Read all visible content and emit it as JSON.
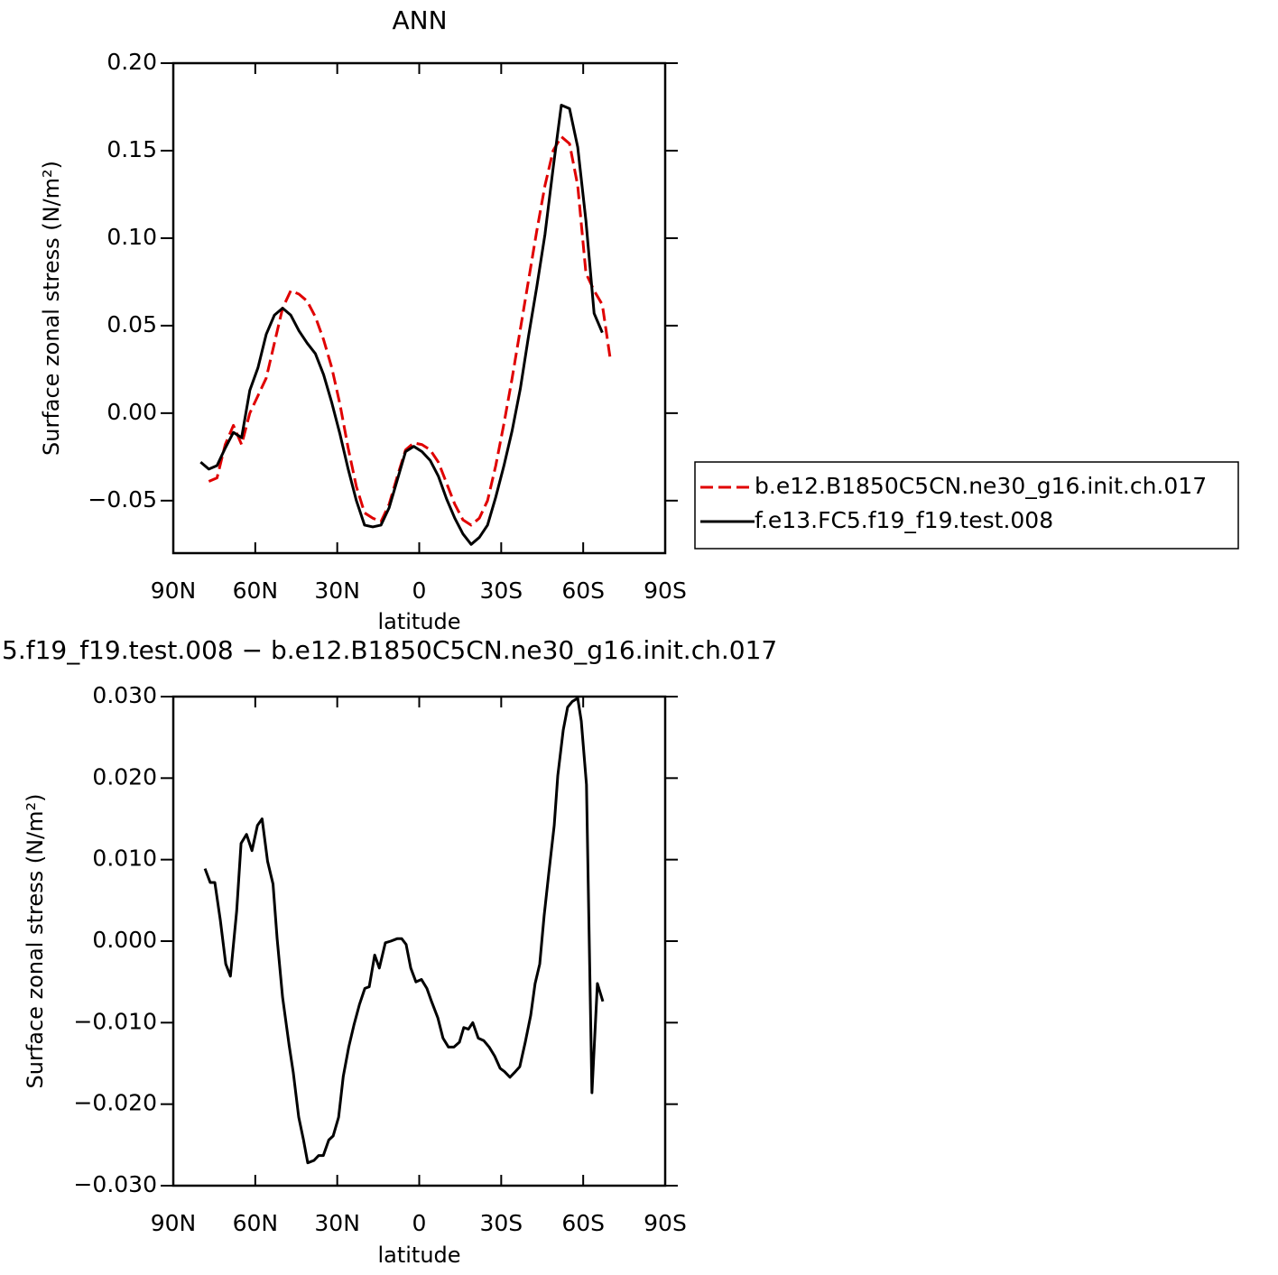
{
  "chart_data": [
    {
      "type": "line",
      "title": "ANN",
      "xlabel": "latitude",
      "ylabel": "Surface zonal stress (N/m²)",
      "x": [
        80,
        77,
        74,
        71,
        68,
        65,
        62,
        59,
        56,
        53,
        50,
        47,
        44,
        41,
        38,
        35,
        32,
        29,
        26,
        23,
        20,
        17,
        14,
        11,
        8,
        5,
        2,
        -1,
        -4,
        -7,
        -10,
        -13,
        -16,
        -19,
        -22,
        -25,
        -28,
        -31,
        -34,
        -37,
        -40,
        -43,
        -46,
        -49,
        -52,
        -55,
        -58,
        -61,
        -64,
        -67,
        -70
      ],
      "xlim": [
        90,
        -90
      ],
      "xticks": [
        {
          "value": 90,
          "label": "90N"
        },
        {
          "value": 60,
          "label": "60N"
        },
        {
          "value": 30,
          "label": "30N"
        },
        0,
        {
          "value": -30,
          "label": "30S"
        },
        {
          "value": -60,
          "label": "60S"
        },
        {
          "value": -90,
          "label": "90S"
        }
      ],
      "ylim": [
        -0.08,
        0.2
      ],
      "yticks": [
        {
          "value": -0.05,
          "label": "−0.05"
        },
        {
          "value": 0,
          "label": "0.00"
        },
        0.05,
        {
          "value": 0.1,
          "label": "0.10"
        },
        0.15,
        {
          "value": 0.2,
          "label": "0.20"
        }
      ],
      "legend": "right",
      "series": [
        {
          "name": "b.e12.B1850C5CN.ne30_g16.init.ch.017",
          "color": "#e00000",
          "dash": true,
          "values": [
            null,
            -0.039,
            -0.037,
            -0.018,
            -0.007,
            -0.018,
            0.0,
            0.01,
            0.02,
            0.04,
            0.06,
            0.07,
            0.068,
            0.064,
            0.055,
            0.042,
            0.026,
            0.005,
            -0.02,
            -0.042,
            -0.057,
            -0.06,
            -0.062,
            -0.052,
            -0.036,
            -0.021,
            -0.017,
            -0.018,
            -0.021,
            -0.028,
            -0.04,
            -0.052,
            -0.061,
            -0.064,
            -0.06,
            -0.05,
            -0.03,
            -0.006,
            0.02,
            0.048,
            0.076,
            0.104,
            0.13,
            0.15,
            0.158,
            0.154,
            0.13,
            0.08,
            0.07,
            0.062,
            0.03
          ]
        },
        {
          "name": "f.e13.FC5.f19_f19.test.008",
          "color": "#000000",
          "dash": false,
          "values": [
            -0.028,
            -0.032,
            -0.03,
            -0.02,
            -0.011,
            -0.014,
            0.013,
            0.026,
            0.045,
            0.056,
            0.06,
            0.056,
            0.047,
            0.04,
            0.034,
            0.022,
            0.006,
            -0.012,
            -0.032,
            -0.05,
            -0.064,
            -0.065,
            -0.064,
            -0.054,
            -0.038,
            -0.022,
            -0.019,
            -0.022,
            -0.027,
            -0.036,
            -0.049,
            -0.06,
            -0.069,
            -0.075,
            -0.071,
            -0.064,
            -0.048,
            -0.03,
            -0.01,
            0.014,
            0.044,
            0.072,
            0.102,
            0.14,
            0.176,
            0.174,
            0.152,
            0.11,
            0.057,
            0.046,
            null
          ]
        }
      ]
    },
    {
      "type": "line",
      "title": "5.f19_f19.test.008 − b.e12.B1850C5CN.ne30_g16.init.ch.017",
      "xlabel": "latitude",
      "ylabel": "Surface zonal stress (N/m²)",
      "x": [
        78.4,
        76.5,
        74.8,
        72.8,
        70.8,
        69.1,
        66.8,
        65.2,
        63.2,
        61.2,
        59.2,
        57.5,
        55.5,
        53.5,
        52.0,
        50.0,
        47.6,
        46.1,
        44.1,
        42.4,
        40.8,
        38.5,
        36.8,
        35.1,
        33.1,
        31.5,
        29.5,
        27.8,
        25.8,
        23.9,
        21.9,
        19.9,
        18.3,
        16.3,
        14.6,
        12.4,
        10.4,
        8.1,
        6.4,
        4.8,
        3.1,
        1.2,
        -0.8,
        -2.8,
        -4.5,
        -6.8,
        -8.7,
        -10.7,
        -12.7,
        -14.7,
        -16.3,
        -18.0,
        -19.6,
        -21.6,
        -23.6,
        -25.6,
        -27.6,
        -29.6,
        -31.2,
        -33.2,
        -35.2,
        -36.8,
        -38.8,
        -40.8,
        -42.4,
        -44.1,
        -45.7,
        -47.4,
        -49.4,
        -50.7,
        -52.7,
        -54.3,
        -56.0,
        -58.0,
        -59.3,
        -61.2,
        -63.2,
        -65.2,
        -67.2
      ],
      "xlim": [
        90,
        -90
      ],
      "xticks": [
        {
          "value": 90,
          "label": "90N"
        },
        {
          "value": 60,
          "label": "60N"
        },
        {
          "value": 30,
          "label": "30N"
        },
        0,
        {
          "value": -30,
          "label": "30S"
        },
        {
          "value": -60,
          "label": "60S"
        },
        {
          "value": -90,
          "label": "90S"
        }
      ],
      "ylim": [
        -0.03,
        0.03
      ],
      "yticks": [
        {
          "value": -0.03,
          "label": "−0.030"
        },
        {
          "value": -0.02,
          "label": "−0.020"
        },
        {
          "value": -0.01,
          "label": "−0.010"
        },
        {
          "value": 0,
          "label": "0.000"
        },
        {
          "value": 0.01,
          "label": "0.010"
        },
        {
          "value": 0.02,
          "label": "0.020"
        },
        {
          "value": 0.03,
          "label": "0.030"
        }
      ],
      "series": [
        {
          "color": "#000000",
          "dash": false,
          "values": [
            0.0089,
            0.0072,
            0.0072,
            0.0026,
            -0.0028,
            -0.0043,
            0.0037,
            0.012,
            0.0131,
            0.0111,
            0.0142,
            0.015,
            0.0098,
            0.007,
            0.0003,
            -0.0069,
            -0.0128,
            -0.0161,
            -0.0216,
            -0.0243,
            -0.0272,
            -0.0269,
            -0.0263,
            -0.0263,
            -0.0244,
            -0.0239,
            -0.0216,
            -0.0166,
            -0.013,
            -0.0103,
            -0.0078,
            -0.0058,
            -0.0056,
            -0.0017,
            -0.0033,
            -0.0002,
            0.0,
            0.0003,
            0.0003,
            -0.0004,
            -0.0033,
            -0.005,
            -0.0047,
            -0.0058,
            -0.0074,
            -0.0094,
            -0.0119,
            -0.013,
            -0.013,
            -0.0124,
            -0.0106,
            -0.0108,
            -0.01,
            -0.0119,
            -0.0122,
            -0.013,
            -0.0141,
            -0.0156,
            -0.016,
            -0.0167,
            -0.016,
            -0.0154,
            -0.0124,
            -0.0091,
            -0.0052,
            -0.0028,
            0.0031,
            0.0083,
            0.0142,
            0.0203,
            0.0259,
            0.0287,
            0.0294,
            0.0298,
            0.027,
            0.0192,
            -0.0186,
            -0.0052,
            -0.0074
          ]
        }
      ]
    }
  ]
}
